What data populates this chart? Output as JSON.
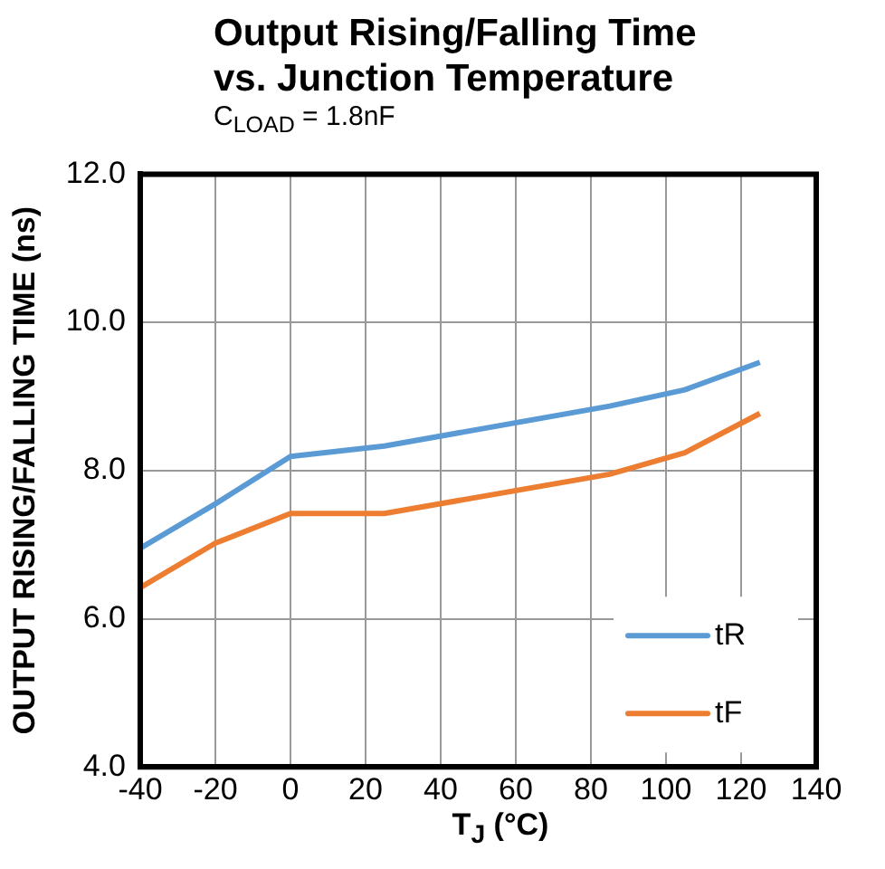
{
  "chart_data": {
    "type": "line",
    "title": "Output Rising/Falling Time vs. Junction Temperature",
    "subtitle": "C$_{LOAD}$ = 1.8nF",
    "xlabel": "T$_{J}$ (°C)",
    "ylabel": "OUTPUT RISING/FALLING TIME (ns)",
    "x": [
      -40,
      -20,
      0,
      25,
      85,
      105,
      125
    ],
    "series": [
      {
        "name": "tR",
        "color": "#5b9bd5",
        "values": [
          6.95,
          7.55,
          8.19,
          8.33,
          8.87,
          9.09,
          9.46
        ]
      },
      {
        "name": "tF",
        "color": "#ed7d31",
        "values": [
          6.42,
          7.02,
          7.42,
          7.42,
          7.95,
          8.24,
          8.77
        ]
      }
    ],
    "xlim": [
      -40,
      140
    ],
    "xticks": [
      -40,
      -20,
      0,
      20,
      40,
      60,
      80,
      100,
      120,
      140
    ],
    "ylim": [
      4,
      12
    ],
    "yticks": [
      {
        "value": 4,
        "label": "4.0"
      },
      {
        "value": 6,
        "label": "6.0"
      },
      {
        "value": 8,
        "label": "8.0"
      },
      {
        "value": 10,
        "label": "10.0"
      },
      {
        "value": 12,
        "label": "12.0"
      }
    ],
    "grid": true,
    "legend": "bottom right",
    "marker": "none",
    "line_style": "solid"
  }
}
